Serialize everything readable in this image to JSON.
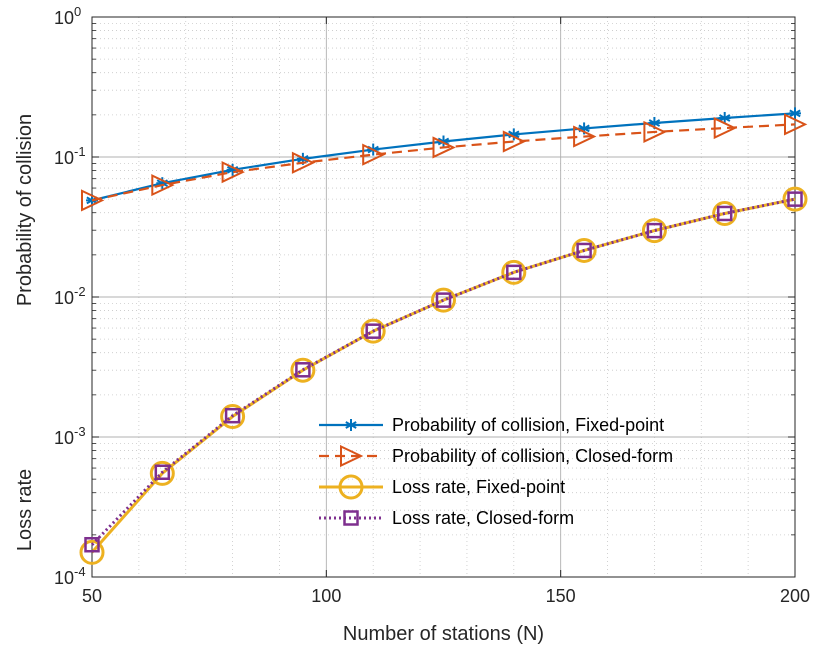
{
  "chart_data": {
    "type": "line",
    "title": "",
    "xlabel": "Number of stations (N)",
    "ylabel_parts": [
      "Loss rate",
      "Probability of collision"
    ],
    "xlim": [
      50,
      200
    ],
    "ylim": [
      0.0001,
      1
    ],
    "yscale": "log",
    "grid": true,
    "minor_grid": true,
    "legend_position": "inside-lower-right",
    "x": [
      50,
      65,
      80,
      95,
      110,
      125,
      140,
      155,
      170,
      185,
      200
    ],
    "x_ticks": [
      50,
      100,
      150,
      200
    ],
    "y_ticks": [
      {
        "value": 0.0001,
        "base": "10",
        "exp": "-4"
      },
      {
        "value": 0.001,
        "base": "10",
        "exp": "-3"
      },
      {
        "value": 0.01,
        "base": "10",
        "exp": "-2"
      },
      {
        "value": 0.1,
        "base": "10",
        "exp": "-1"
      },
      {
        "value": 1,
        "base": "10",
        "exp": "0"
      }
    ],
    "series": [
      {
        "name": "Probability of collision, Fixed-point",
        "color": "#0072BD",
        "line": "solid",
        "marker": "asterisk",
        "values": [
          0.049,
          0.065,
          0.081,
          0.097,
          0.113,
          0.129,
          0.145,
          0.16,
          0.175,
          0.19,
          0.205
        ]
      },
      {
        "name": "Probability of collision, Closed-form",
        "color": "#D95319",
        "line": "dashed",
        "marker": "triangle-right",
        "values": [
          0.049,
          0.063,
          0.078,
          0.091,
          0.104,
          0.117,
          0.129,
          0.14,
          0.151,
          0.161,
          0.171
        ]
      },
      {
        "name": "Loss rate, Fixed-point",
        "color": "#EDB120",
        "line": "solid",
        "marker": "circle",
        "values": [
          0.00015,
          0.00055,
          0.0014,
          0.003,
          0.0057,
          0.0095,
          0.015,
          0.0215,
          0.0298,
          0.0395,
          0.05
        ]
      },
      {
        "name": "Loss rate, Closed-form",
        "color": "#7E2F8E",
        "line": "dotted",
        "marker": "square",
        "values": [
          0.00017,
          0.00056,
          0.00142,
          0.00302,
          0.0057,
          0.0095,
          0.015,
          0.0215,
          0.0298,
          0.0395,
          0.05
        ]
      }
    ]
  }
}
